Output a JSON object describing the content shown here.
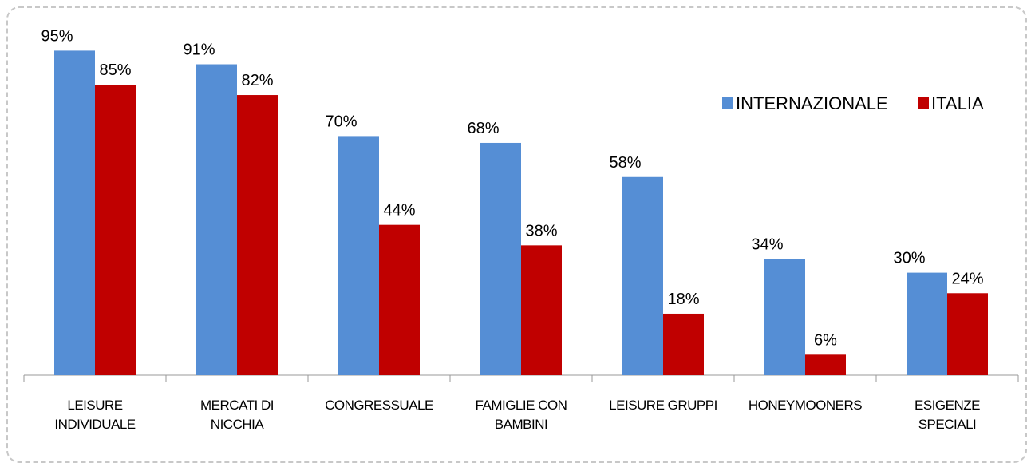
{
  "chart_data": {
    "type": "bar",
    "categories": [
      "LEISURE\nINDIVIDUALE",
      "MERCATI DI\nNICCHIA",
      "CONGRESSUALE",
      "FAMIGLIE CON\nBAMBINI",
      "LEISURE GRUPPI",
      "HONEYMOONERS",
      "ESIGENZE\nSPECIALI"
    ],
    "series": [
      {
        "name": "INTERNAZIONALE",
        "color": "#558ed5",
        "values": [
          95,
          91,
          70,
          68,
          58,
          34,
          30
        ],
        "value_labels": [
          "95%",
          "91%",
          "70%",
          "68%",
          "58%",
          "34%",
          "30%"
        ]
      },
      {
        "name": "ITALIA",
        "color": "#c00000",
        "values": [
          85,
          82,
          44,
          38,
          18,
          6,
          24
        ],
        "value_labels": [
          "85%",
          "82%",
          "44%",
          "38%",
          "18%",
          "6%",
          "24%"
        ]
      }
    ],
    "ylim": [
      0,
      100
    ],
    "legend": "upper right"
  }
}
